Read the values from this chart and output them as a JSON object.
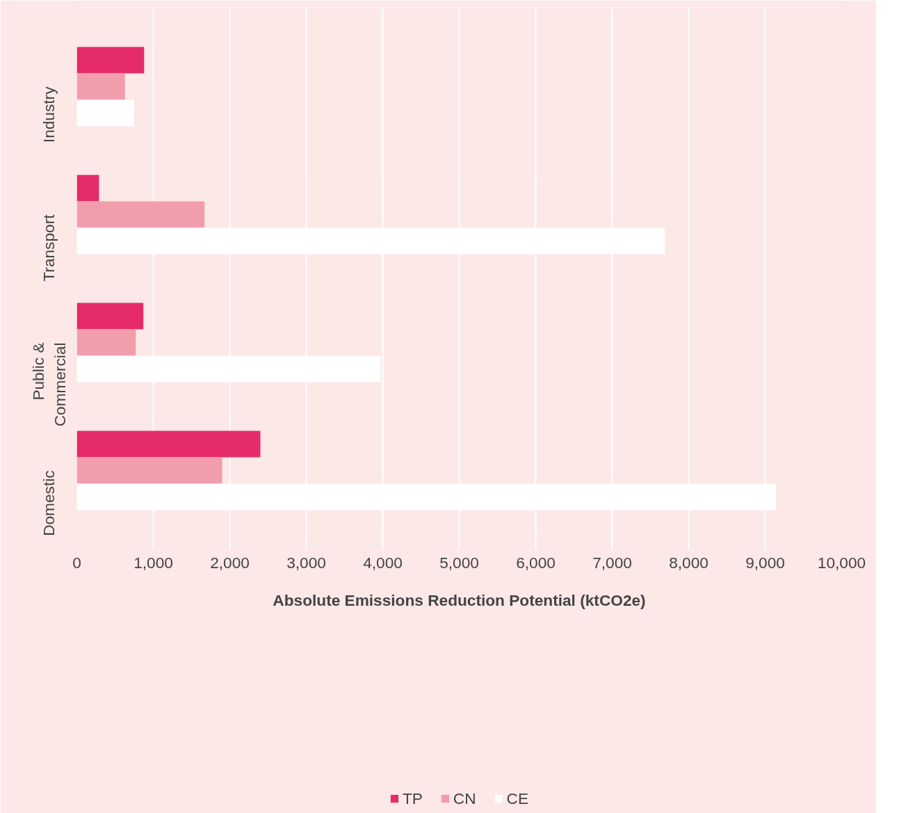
{
  "chart_data": {
    "type": "bar",
    "orientation": "horizontal",
    "xlabel": "Absolute Emissions Reduction Potential (ktCO2e)",
    "categories": [
      "Industry",
      "Transport",
      "Public &\nCommercial",
      "Domestic"
    ],
    "series": [
      {
        "name": "TP",
        "color": "#e62b6a",
        "values": [
          880,
          290,
          870,
          2400
        ]
      },
      {
        "name": "CN",
        "color": "#f29dab",
        "values": [
          630,
          1670,
          770,
          1900
        ]
      },
      {
        "name": "CE",
        "color": "#ffffff",
        "values": [
          750,
          7690,
          3970,
          9140
        ]
      }
    ],
    "xlim": [
      0,
      10000
    ],
    "xticks": [
      0,
      {
        "value": 1000,
        "label": "1,000"
      },
      {
        "value": 2000,
        "label": "2,000"
      },
      {
        "value": 3000,
        "label": "3,000"
      },
      {
        "value": 4000,
        "label": "4,000"
      },
      {
        "value": 5000,
        "label": "5,000"
      },
      {
        "value": 6000,
        "label": "6,000"
      },
      {
        "value": 7000,
        "label": "7,000"
      },
      {
        "value": 8000,
        "label": "8,000"
      },
      {
        "value": 9000,
        "label": "9,000"
      },
      {
        "value": 10000,
        "label": "10,000"
      }
    ],
    "grid": "x",
    "legend": "bottom"
  }
}
